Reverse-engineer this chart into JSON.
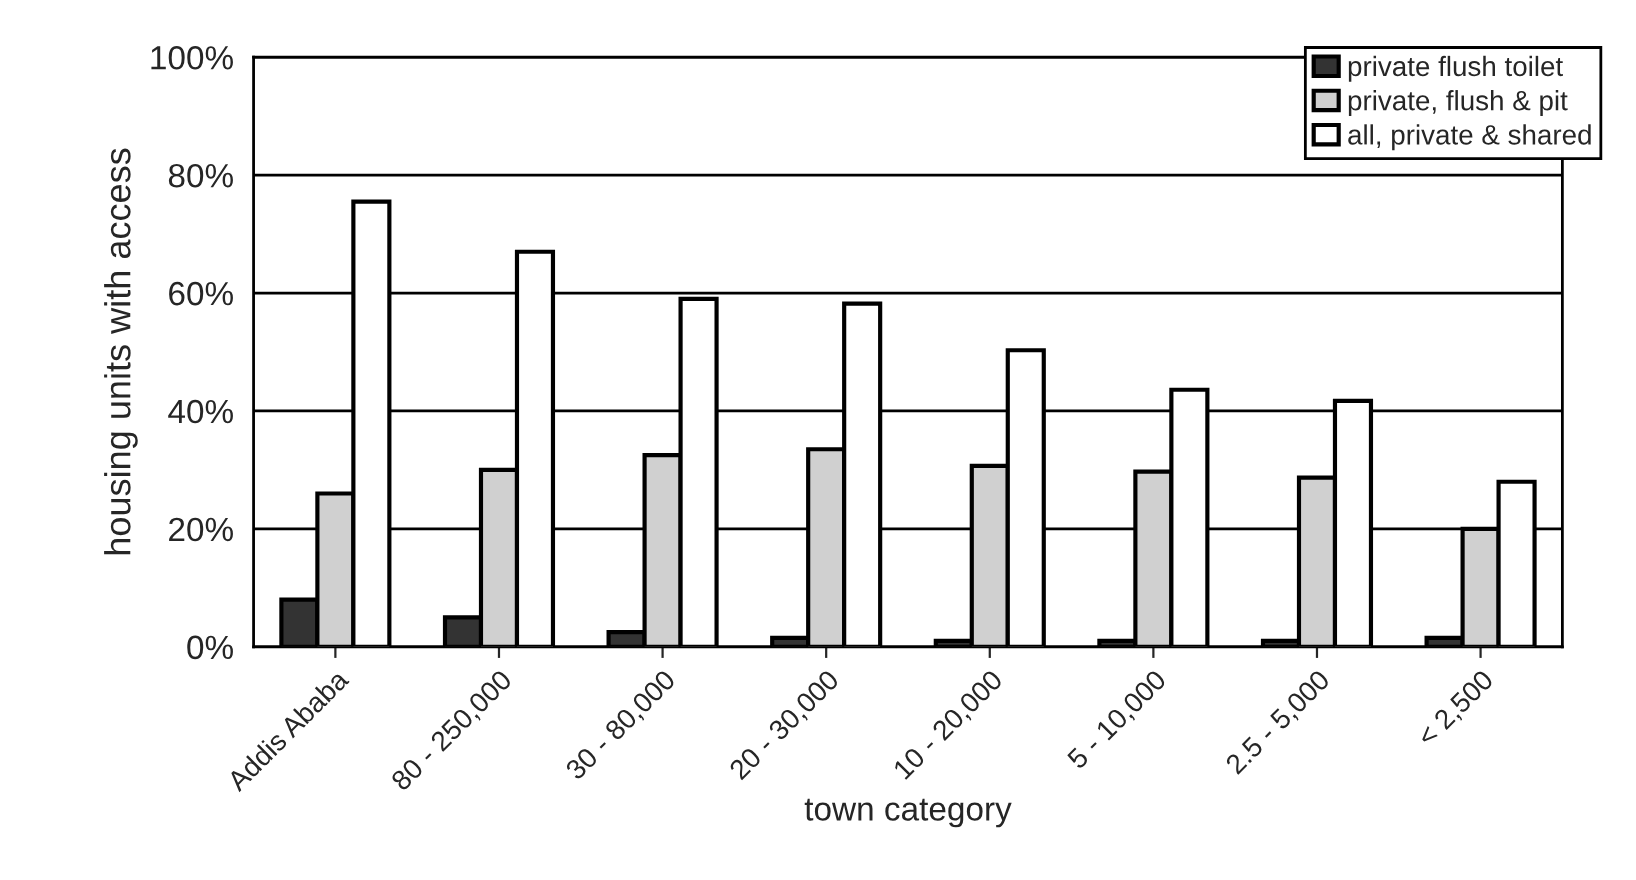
{
  "chart_data": {
    "type": "bar",
    "xlabel": "town category",
    "ylabel": "housing units with access",
    "categories": [
      "Addis Ababa",
      "80 - 250,000",
      "30 - 80,000",
      "20 - 30,000",
      "10 - 20,000",
      "5 - 10,000",
      "2.5 - 5,000",
      "< 2,500"
    ],
    "series": [
      {
        "name": "private flush toilet",
        "color": "#333333",
        "values": [
          8,
          5,
          2.5,
          1.5,
          1,
          1,
          1,
          1.5
        ]
      },
      {
        "name": "private, flush & pit",
        "color": "#d0d0d0",
        "values": [
          26,
          30,
          32.5,
          33.5,
          30.7,
          29.7,
          28.7,
          20
        ]
      },
      {
        "name": "all, private & shared",
        "color": "#ffffff",
        "values": [
          75.5,
          67,
          59,
          58.2,
          50.3,
          43.6,
          41.7,
          28
        ]
      }
    ],
    "ylim": [
      0,
      100
    ],
    "yticks": [
      {
        "value": 0,
        "label": "0%"
      },
      {
        "value": 20,
        "label": "20%"
      },
      {
        "value": 40,
        "label": "40%"
      },
      {
        "value": 60,
        "label": "60%"
      },
      {
        "value": 80,
        "label": "80%"
      },
      {
        "value": 100,
        "label": "100%"
      }
    ],
    "grid": "y",
    "legend": "top right"
  }
}
